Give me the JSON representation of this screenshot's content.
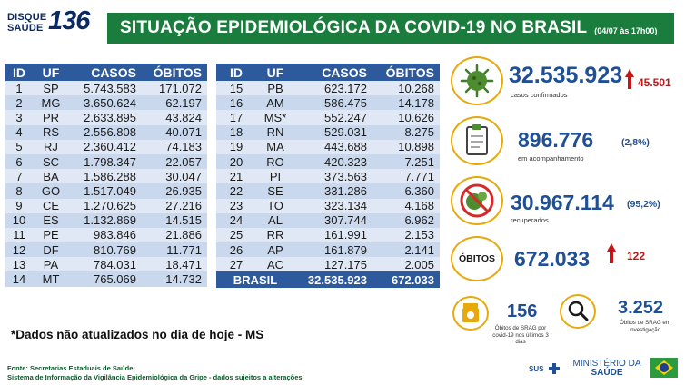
{
  "header": {
    "logo_disque": "DISQUE",
    "logo_saude": "SAÚDE",
    "logo_number": "136",
    "title": "SITUAÇÃO EPIDEMIOLÓGICA DA COVID-19 NO BRASIL",
    "date": "(04/07 às 17h00)"
  },
  "table": {
    "headers": {
      "id": "ID",
      "uf": "UF",
      "casos": "CASOS",
      "obitos": "ÓBITOS"
    },
    "left_rows": [
      {
        "id": "1",
        "uf": "SP",
        "casos": "5.743.583",
        "obitos": "171.072"
      },
      {
        "id": "2",
        "uf": "MG",
        "casos": "3.650.624",
        "obitos": "62.197"
      },
      {
        "id": "3",
        "uf": "PR",
        "casos": "2.633.895",
        "obitos": "43.824"
      },
      {
        "id": "4",
        "uf": "RS",
        "casos": "2.556.808",
        "obitos": "40.071"
      },
      {
        "id": "5",
        "uf": "RJ",
        "casos": "2.360.412",
        "obitos": "74.183"
      },
      {
        "id": "6",
        "uf": "SC",
        "casos": "1.798.347",
        "obitos": "22.057"
      },
      {
        "id": "7",
        "uf": "BA",
        "casos": "1.586.288",
        "obitos": "30.047"
      },
      {
        "id": "8",
        "uf": "GO",
        "casos": "1.517.049",
        "obitos": "26.935"
      },
      {
        "id": "9",
        "uf": "CE",
        "casos": "1.270.625",
        "obitos": "27.216"
      },
      {
        "id": "10",
        "uf": "ES",
        "casos": "1.132.869",
        "obitos": "14.515"
      },
      {
        "id": "11",
        "uf": "PE",
        "casos": "983.846",
        "obitos": "21.886"
      },
      {
        "id": "12",
        "uf": "DF",
        "casos": "810.769",
        "obitos": "11.771"
      },
      {
        "id": "13",
        "uf": "PA",
        "casos": "784.031",
        "obitos": "18.471"
      },
      {
        "id": "14",
        "uf": "MT",
        "casos": "765.069",
        "obitos": "14.732"
      }
    ],
    "right_rows": [
      {
        "id": "15",
        "uf": "PB",
        "casos": "623.172",
        "obitos": "10.268"
      },
      {
        "id": "16",
        "uf": "AM",
        "casos": "586.475",
        "obitos": "14.178"
      },
      {
        "id": "17",
        "uf": "MS*",
        "casos": "552.247",
        "obitos": "10.626"
      },
      {
        "id": "18",
        "uf": "RN",
        "casos": "529.031",
        "obitos": "8.275"
      },
      {
        "id": "19",
        "uf": "MA",
        "casos": "443.688",
        "obitos": "10.898"
      },
      {
        "id": "20",
        "uf": "RO",
        "casos": "420.323",
        "obitos": "7.251"
      },
      {
        "id": "21",
        "uf": "PI",
        "casos": "373.563",
        "obitos": "7.771"
      },
      {
        "id": "22",
        "uf": "SE",
        "casos": "331.286",
        "obitos": "6.360"
      },
      {
        "id": "23",
        "uf": "TO",
        "casos": "323.134",
        "obitos": "4.168"
      },
      {
        "id": "24",
        "uf": "AL",
        "casos": "307.744",
        "obitos": "6.962"
      },
      {
        "id": "25",
        "uf": "RR",
        "casos": "161.991",
        "obitos": "2.153"
      },
      {
        "id": "26",
        "uf": "AP",
        "casos": "161.879",
        "obitos": "2.141"
      },
      {
        "id": "27",
        "uf": "AC",
        "casos": "127.175",
        "obitos": "2.005"
      }
    ],
    "total": {
      "label": "BRASIL",
      "casos": "32.535.923",
      "obitos": "672.033"
    }
  },
  "note": "*Dados não atualizados no dia de hoje - MS",
  "fonte": {
    "line1": "Fonte: Secretarias Estaduais de Saúde;",
    "line2": "Sistema de Informação da Vigilância Epidemiológica da Gripe - dados sujeitos a alterações."
  },
  "stats": {
    "confirmados": {
      "value": "32.535.923",
      "delta": "45.501",
      "label": "casos confirmados"
    },
    "acompanhamento": {
      "value": "896.776",
      "pct": "(2,8%)",
      "label": "em acompanhamento"
    },
    "recuperados": {
      "value": "30.967.114",
      "pct": "(95,2%)",
      "label": "recuperados"
    },
    "obitos": {
      "badge": "ÓBITOS",
      "value": "672.033",
      "delta": "122"
    },
    "srag_obitos": {
      "value": "156",
      "label": "Óbitos de SRAG por covid-19 nos últimos 3 dias"
    },
    "srag_investigacao": {
      "value": "3.252",
      "label": "Óbitos de SRAG em investigação"
    }
  },
  "logos": {
    "sus": "SUS",
    "ministerio": "MINISTÉRIO DA",
    "saude": "SAÚDE"
  },
  "colors": {
    "header_green": "#1a7d3d",
    "table_blue": "#2d5a9c",
    "number_blue": "#1f4f94",
    "delta_red": "#c01818",
    "circle_gold": "#e8a90c"
  }
}
